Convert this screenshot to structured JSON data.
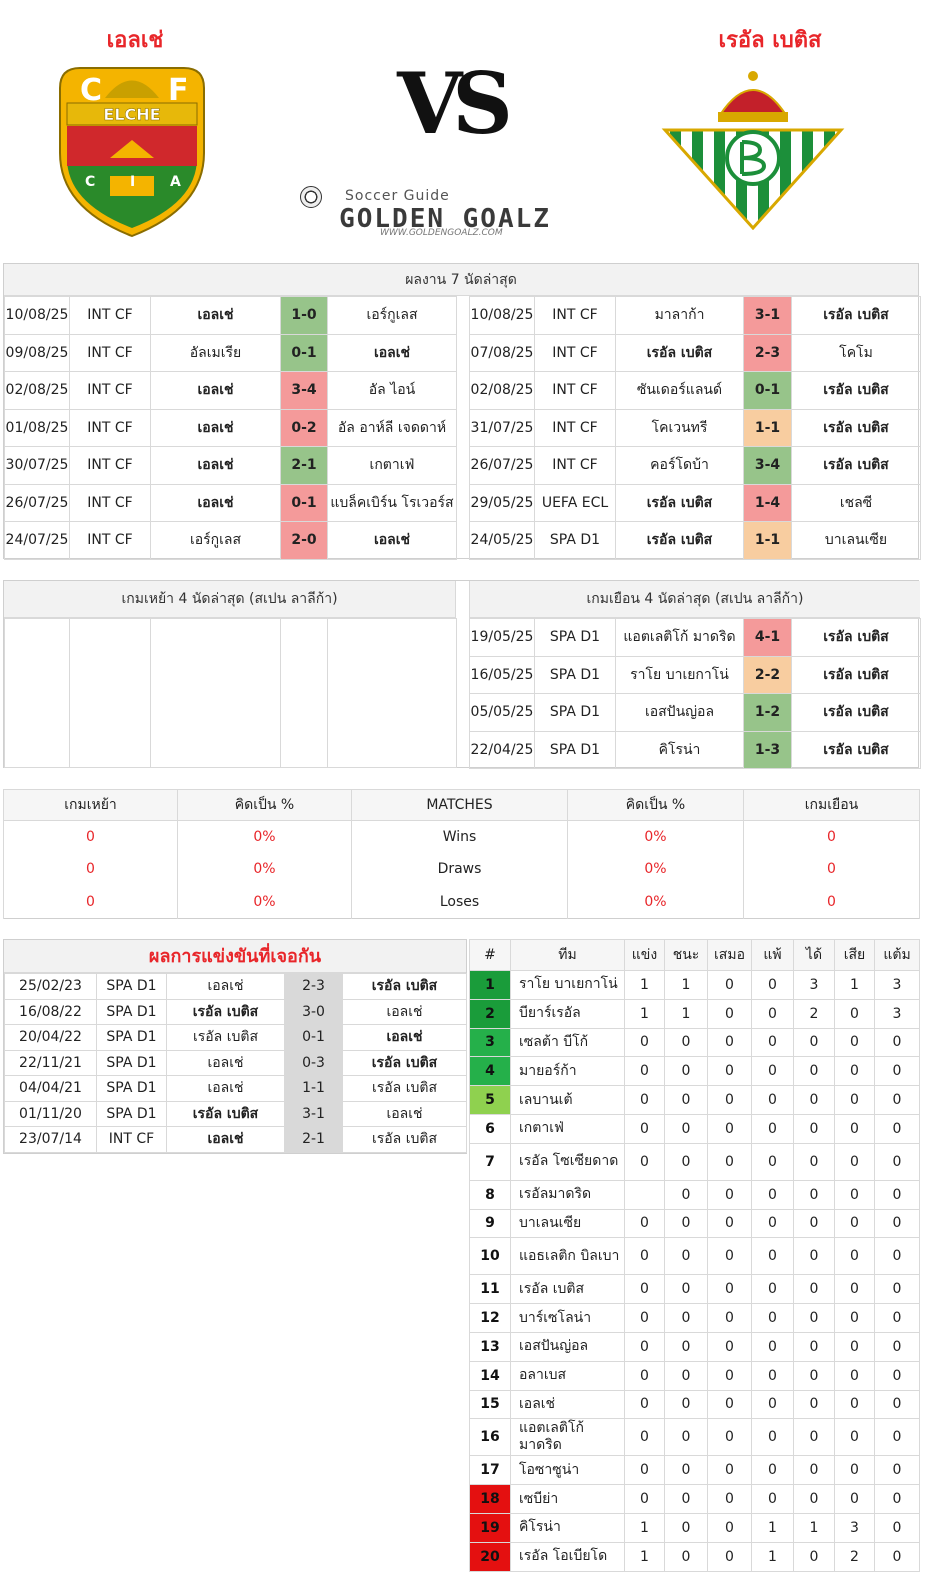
{
  "home_team": "เอลเช่",
  "away_team": "เรอัล เบติส",
  "vs_text": "VS",
  "brand": {
    "small": "Soccer Guide",
    "big": "GOLDEN GOALZ",
    "url": "WWW.GOLDENGOALZ.COM"
  },
  "home_crest": {
    "letters_top": "C",
    "letters_f": "F",
    "band": "ELCHE",
    "c": "C",
    "i": "I",
    "a": "A"
  },
  "recent_title": "ผลงาน 7 นัดล่าสุด",
  "home_recent": [
    {
      "date": "10/08/25",
      "comp": "INT CF",
      "home": "เอลเช่",
      "score": "1-0",
      "away": "เอร์กูเลส",
      "res": "win",
      "hb": true,
      "ab": false
    },
    {
      "date": "09/08/25",
      "comp": "INT CF",
      "home": "อัลเมเรีย",
      "score": "0-1",
      "away": "เอลเช่",
      "res": "win",
      "hb": false,
      "ab": true
    },
    {
      "date": "02/08/25",
      "comp": "INT CF",
      "home": "เอลเช่",
      "score": "3-4",
      "away": "อัล ไอน์",
      "res": "lose",
      "hb": true,
      "ab": false
    },
    {
      "date": "01/08/25",
      "comp": "INT CF",
      "home": "เอลเช่",
      "score": "0-2",
      "away": "อัล อาห์ลี เจดดาห์",
      "res": "lose",
      "hb": true,
      "ab": false
    },
    {
      "date": "30/07/25",
      "comp": "INT CF",
      "home": "เอลเช่",
      "score": "2-1",
      "away": "เกตาเฟ่",
      "res": "win",
      "hb": true,
      "ab": false
    },
    {
      "date": "26/07/25",
      "comp": "INT CF",
      "home": "เอลเช่",
      "score": "0-1",
      "away": "แบล็คเบิร์น โรเวอร์ส",
      "res": "lose",
      "hb": true,
      "ab": false
    },
    {
      "date": "24/07/25",
      "comp": "INT CF",
      "home": "เอร์กูเลส",
      "score": "2-0",
      "away": "เอลเช่",
      "res": "lose",
      "hb": false,
      "ab": true
    }
  ],
  "away_recent": [
    {
      "date": "10/08/25",
      "comp": "INT CF",
      "home": "มาลาก้า",
      "score": "3-1",
      "away": "เรอัล เบติส",
      "res": "lose",
      "hb": false,
      "ab": true
    },
    {
      "date": "07/08/25",
      "comp": "INT CF",
      "home": "เรอัล เบติส",
      "score": "2-3",
      "away": "โคโม",
      "res": "lose",
      "hb": true,
      "ab": false
    },
    {
      "date": "02/08/25",
      "comp": "INT CF",
      "home": "ซันเดอร์แลนด์",
      "score": "0-1",
      "away": "เรอัล เบติส",
      "res": "win",
      "hb": false,
      "ab": true
    },
    {
      "date": "31/07/25",
      "comp": "INT CF",
      "home": "โคเวนทรี",
      "score": "1-1",
      "away": "เรอัล เบติส",
      "res": "draw",
      "hb": false,
      "ab": true
    },
    {
      "date": "26/07/25",
      "comp": "INT CF",
      "home": "คอร์โดบ้า",
      "score": "3-4",
      "away": "เรอัล เบติส",
      "res": "win",
      "hb": false,
      "ab": true
    },
    {
      "date": "29/05/25",
      "comp": "UEFA ECL",
      "home": "เรอัล เบติส",
      "score": "1-4",
      "away": "เชลซี",
      "res": "lose",
      "hb": true,
      "ab": false
    },
    {
      "date": "24/05/25",
      "comp": "SPA D1",
      "home": "เรอัล เบติส",
      "score": "1-1",
      "away": "บาเลนเซีย",
      "res": "draw",
      "hb": true,
      "ab": false
    }
  ],
  "home_league_title": "เกมเหย้า 4 นัดล่าสุด (สเปน ลาลีก้า)",
  "away_league_title": "เกมเยือน 4 นัดล่าสุด (สเปน ลาลีก้า)",
  "away_league": [
    {
      "date": "19/05/25",
      "comp": "SPA D1",
      "home": "แอตเลติโก้ มาดริด",
      "score": "4-1",
      "away": "เรอัล เบติส",
      "res": "lose"
    },
    {
      "date": "16/05/25",
      "comp": "SPA D1",
      "home": "ราโย บาเยกาโน่",
      "score": "2-2",
      "away": "เรอัล เบติส",
      "res": "draw"
    },
    {
      "date": "05/05/25",
      "comp": "SPA D1",
      "home": "เอสปันญ่อล",
      "score": "1-2",
      "away": "เรอัล เบติส",
      "res": "win"
    },
    {
      "date": "22/04/25",
      "comp": "SPA D1",
      "home": "คิโรน่า",
      "score": "1-3",
      "away": "เรอัล เบติส",
      "res": "win"
    }
  ],
  "summary": {
    "headers": [
      "เกมเหย้า",
      "คิดเป็น %",
      "MATCHES",
      "คิดเป็น %",
      "เกมเยือน"
    ],
    "rows": [
      {
        "h": "0",
        "hp": "0%",
        "label": "Wins",
        "ap": "0%",
        "a": "0"
      },
      {
        "h": "0",
        "hp": "0%",
        "label": "Draws",
        "ap": "0%",
        "a": "0"
      },
      {
        "h": "0",
        "hp": "0%",
        "label": "Loses",
        "ap": "0%",
        "a": "0"
      }
    ]
  },
  "h2h_title": "ผลการแข่งขันที่เจอกัน",
  "h2h": [
    {
      "date": "25/02/23",
      "comp": "SPA D1",
      "home": "เอลเช่",
      "score": "2-3",
      "away": "เรอัล เบติส",
      "hb": false,
      "ab": true
    },
    {
      "date": "16/08/22",
      "comp": "SPA D1",
      "home": "เรอัล เบติส",
      "score": "3-0",
      "away": "เอลเช่",
      "hb": true,
      "ab": false
    },
    {
      "date": "20/04/22",
      "comp": "SPA D1",
      "home": "เรอัล เบติส",
      "score": "0-1",
      "away": "เอลเช่",
      "hb": false,
      "ab": true
    },
    {
      "date": "22/11/21",
      "comp": "SPA D1",
      "home": "เอลเช่",
      "score": "0-3",
      "away": "เรอัล เบติส",
      "hb": false,
      "ab": true
    },
    {
      "date": "04/04/21",
      "comp": "SPA D1",
      "home": "เอลเช่",
      "score": "1-1",
      "away": "เรอัล เบติส",
      "hb": false,
      "ab": false
    },
    {
      "date": "01/11/20",
      "comp": "SPA D1",
      "home": "เรอัล เบติส",
      "score": "3-1",
      "away": "เอลเช่",
      "hb": true,
      "ab": false
    },
    {
      "date": "23/07/14",
      "comp": "INT CF",
      "home": "เอลเช่",
      "score": "2-1",
      "away": "เรอัล เบติส",
      "hb": true,
      "ab": false
    }
  ],
  "standings_headers": [
    "#",
    "ทีม",
    "แข่ง",
    "ชนะ",
    "เสมอ",
    "แพ้",
    "ได้",
    "เสีย",
    "แต้ม"
  ],
  "standings": [
    {
      "rank": "1",
      "team": "ราโย บาเยกาโน่",
      "p": "1",
      "w": "1",
      "d": "0",
      "l": "0",
      "gf": "3",
      "ga": "1",
      "pts": "3",
      "c": "r-g1"
    },
    {
      "rank": "2",
      "team": "บียาร์เรอัล",
      "p": "1",
      "w": "1",
      "d": "0",
      "l": "0",
      "gf": "2",
      "ga": "0",
      "pts": "3",
      "c": "r-g1"
    },
    {
      "rank": "3",
      "team": "เซลต้า บีโก้",
      "p": "0",
      "w": "0",
      "d": "0",
      "l": "0",
      "gf": "0",
      "ga": "0",
      "pts": "0",
      "c": "r-g2"
    },
    {
      "rank": "4",
      "team": "มายอร์ก้า",
      "p": "0",
      "w": "0",
      "d": "0",
      "l": "0",
      "gf": "0",
      "ga": "0",
      "pts": "0",
      "c": "r-g2"
    },
    {
      "rank": "5",
      "team": "เลบานเต้",
      "p": "0",
      "w": "0",
      "d": "0",
      "l": "0",
      "gf": "0",
      "ga": "0",
      "pts": "0",
      "c": "r-lg"
    },
    {
      "rank": "6",
      "team": "เกตาเฟ่",
      "p": "0",
      "w": "0",
      "d": "0",
      "l": "0",
      "gf": "0",
      "ga": "0",
      "pts": "0",
      "c": ""
    },
    {
      "rank": "7",
      "team": "เรอัล โซเซียดาด",
      "p": "0",
      "w": "0",
      "d": "0",
      "l": "0",
      "gf": "0",
      "ga": "0",
      "pts": "0",
      "c": ""
    },
    {
      "rank": "8",
      "team": "เรอัลมาดริด",
      "p": "",
      "w": "0",
      "d": "0",
      "l": "0",
      "gf": "0",
      "ga": "0",
      "pts": "0",
      "c": ""
    },
    {
      "rank": "9",
      "team": "บาเลนเซีย",
      "p": "0",
      "w": "0",
      "d": "0",
      "l": "0",
      "gf": "0",
      "ga": "0",
      "pts": "0",
      "c": ""
    },
    {
      "rank": "10",
      "team": "แอธเลติก บิลเบา",
      "p": "0",
      "w": "0",
      "d": "0",
      "l": "0",
      "gf": "0",
      "ga": "0",
      "pts": "0",
      "c": ""
    },
    {
      "rank": "11",
      "team": "เรอัล เบติส",
      "p": "0",
      "w": "0",
      "d": "0",
      "l": "0",
      "gf": "0",
      "ga": "0",
      "pts": "0",
      "c": ""
    },
    {
      "rank": "12",
      "team": "บาร์เซโลน่า",
      "p": "0",
      "w": "0",
      "d": "0",
      "l": "0",
      "gf": "0",
      "ga": "0",
      "pts": "0",
      "c": ""
    },
    {
      "rank": "13",
      "team": "เอสปันญ่อล",
      "p": "0",
      "w": "0",
      "d": "0",
      "l": "0",
      "gf": "0",
      "ga": "0",
      "pts": "0",
      "c": ""
    },
    {
      "rank": "14",
      "team": "อลาเบส",
      "p": "0",
      "w": "0",
      "d": "0",
      "l": "0",
      "gf": "0",
      "ga": "0",
      "pts": "0",
      "c": ""
    },
    {
      "rank": "15",
      "team": "เอลเช่",
      "p": "0",
      "w": "0",
      "d": "0",
      "l": "0",
      "gf": "0",
      "ga": "0",
      "pts": "0",
      "c": ""
    },
    {
      "rank": "16",
      "team": "แอตเลติโก้ มาดริด",
      "p": "0",
      "w": "0",
      "d": "0",
      "l": "0",
      "gf": "0",
      "ga": "0",
      "pts": "0",
      "c": ""
    },
    {
      "rank": "17",
      "team": "โอซาซูน่า",
      "p": "0",
      "w": "0",
      "d": "0",
      "l": "0",
      "gf": "0",
      "ga": "0",
      "pts": "0",
      "c": ""
    },
    {
      "rank": "18",
      "team": "เซบีย่า",
      "p": "0",
      "w": "0",
      "d": "0",
      "l": "0",
      "gf": "0",
      "ga": "0",
      "pts": "0",
      "c": "r-red"
    },
    {
      "rank": "19",
      "team": "คิโรน่า",
      "p": "1",
      "w": "0",
      "d": "0",
      "l": "1",
      "gf": "1",
      "ga": "3",
      "pts": "0",
      "c": "r-red"
    },
    {
      "rank": "20",
      "team": "เรอัล โอเบียโด",
      "p": "1",
      "w": "0",
      "d": "0",
      "l": "1",
      "gf": "0",
      "ga": "2",
      "pts": "0",
      "c": "r-red"
    }
  ]
}
